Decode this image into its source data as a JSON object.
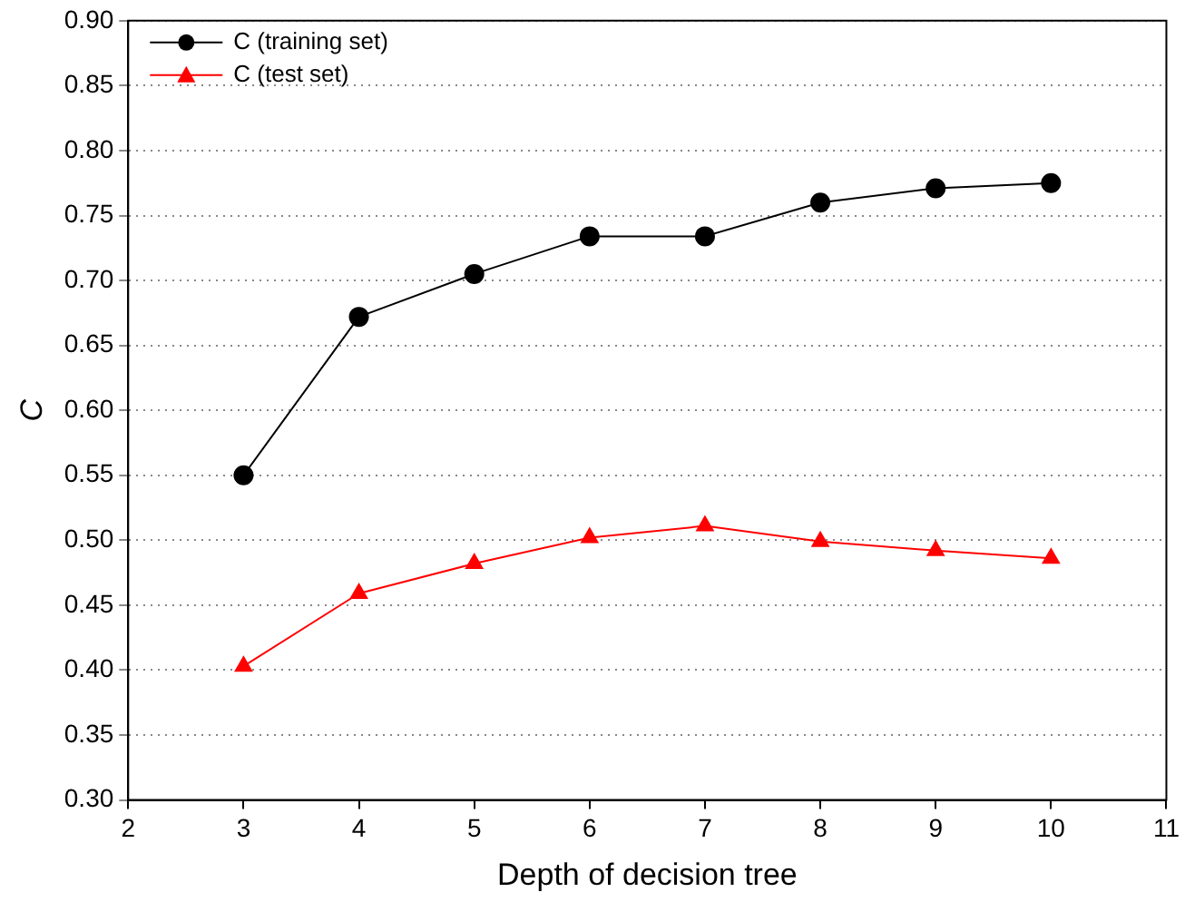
{
  "chart_data": {
    "type": "line",
    "xlabel": "Depth of decision tree",
    "ylabel": "C",
    "x": [
      3,
      4,
      5,
      6,
      7,
      8,
      9,
      10
    ],
    "series": [
      {
        "name": "C (training set)",
        "color": "#000000",
        "marker": "circle",
        "values": [
          0.55,
          0.672,
          0.705,
          0.734,
          0.734,
          0.76,
          0.771,
          0.775
        ]
      },
      {
        "name": "C (test set)",
        "color": "#ff0000",
        "marker": "triangle",
        "values": [
          0.403,
          0.459,
          0.482,
          0.502,
          0.511,
          0.499,
          0.492,
          0.486
        ]
      }
    ],
    "xlim": [
      2,
      11
    ],
    "xticks": [
      2,
      3,
      4,
      5,
      6,
      7,
      8,
      9,
      10,
      11
    ],
    "ylim": [
      0.3,
      0.9
    ],
    "yticks": [
      {
        "value": 0.3,
        "label": "0.30"
      },
      {
        "value": 0.35,
        "label": "0.35"
      },
      {
        "value": 0.4,
        "label": "0.40"
      },
      {
        "value": 0.45,
        "label": "0.45"
      },
      {
        "value": 0.5,
        "label": "0.50"
      },
      {
        "value": 0.55,
        "label": "0.55"
      },
      {
        "value": 0.6,
        "label": "0.60"
      },
      {
        "value": 0.65,
        "label": "0.65"
      },
      {
        "value": 0.7,
        "label": "0.70"
      },
      {
        "value": 0.75,
        "label": "0.75"
      },
      {
        "value": 0.8,
        "label": "0.80"
      },
      {
        "value": 0.85,
        "label": "0.85"
      },
      {
        "value": 0.9,
        "label": "0.90"
      }
    ],
    "grid": "y",
    "legend": "top left",
    "line_style": "solid"
  }
}
